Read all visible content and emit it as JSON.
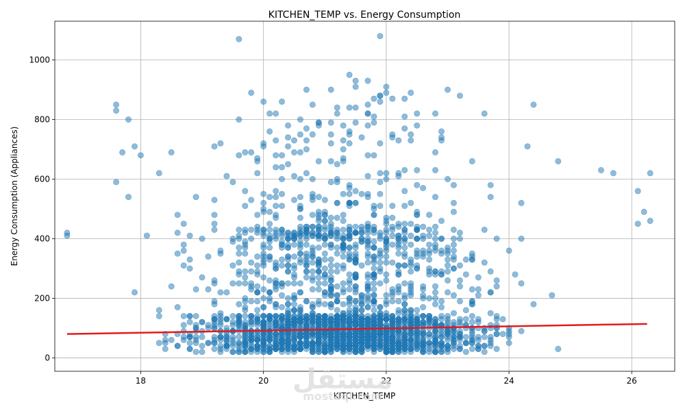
{
  "chart_data": {
    "type": "scatter",
    "title": "KITCHEN_TEMP vs. Energy Consumption",
    "xlabel": "KITCHEN_TEMP",
    "ylabel": "Energy Consumption (Appliances)",
    "xlim": [
      16.6,
      26.7
    ],
    "ylim": [
      -45,
      1130
    ],
    "x_ticks": [
      18,
      20,
      22,
      24,
      26
    ],
    "y_ticks": [
      0,
      200,
      400,
      600,
      800,
      1000
    ],
    "grid": true,
    "point_color": "#1f77b4",
    "trend_color": "#e31a1c",
    "trendline": {
      "x": [
        16.8,
        26.25
      ],
      "y": [
        80,
        114
      ]
    },
    "notable_points": [
      {
        "x": 21.9,
        "y": 1080
      },
      {
        "x": 19.6,
        "y": 1070
      },
      {
        "x": 21.5,
        "y": 910
      },
      {
        "x": 23.0,
        "y": 900
      },
      {
        "x": 19.8,
        "y": 890
      },
      {
        "x": 23.2,
        "y": 880
      },
      {
        "x": 20.0,
        "y": 860
      },
      {
        "x": 17.6,
        "y": 850
      },
      {
        "x": 24.4,
        "y": 850
      },
      {
        "x": 21.4,
        "y": 840
      },
      {
        "x": 17.6,
        "y": 830
      },
      {
        "x": 23.6,
        "y": 820
      },
      {
        "x": 17.8,
        "y": 800
      },
      {
        "x": 17.9,
        "y": 710
      },
      {
        "x": 17.7,
        "y": 690
      },
      {
        "x": 18.0,
        "y": 680
      },
      {
        "x": 17.6,
        "y": 590
      },
      {
        "x": 17.8,
        "y": 540
      },
      {
        "x": 16.8,
        "y": 420
      },
      {
        "x": 16.8,
        "y": 410
      },
      {
        "x": 26.3,
        "y": 620
      },
      {
        "x": 26.1,
        "y": 560
      },
      {
        "x": 26.2,
        "y": 490
      },
      {
        "x": 26.3,
        "y": 460
      },
      {
        "x": 26.1,
        "y": 450
      },
      {
        "x": 25.7,
        "y": 620
      },
      {
        "x": 25.5,
        "y": 630
      },
      {
        "x": 24.8,
        "y": 660
      },
      {
        "x": 24.3,
        "y": 710
      }
    ]
  },
  "watermark": {
    "arabic": "مستقل",
    "latin": "mostaql.com"
  }
}
